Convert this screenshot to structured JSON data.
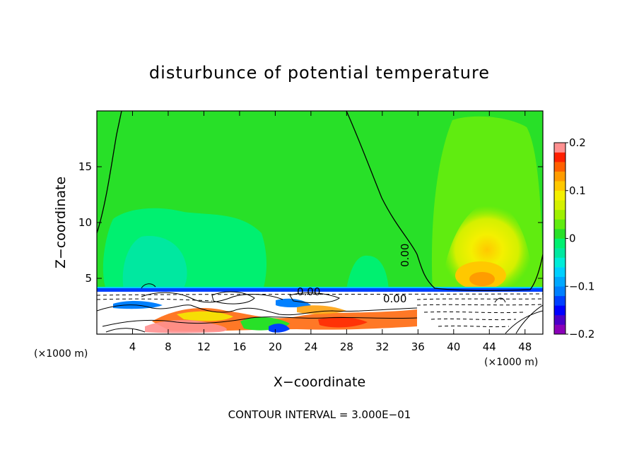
{
  "chart_data": {
    "type": "heatmap",
    "title": "disturbunce of potential temperature",
    "xlabel": "X−coordinate",
    "ylabel": "Z−coordinate",
    "x_unit_left": "(×1000 m)",
    "x_unit_right": "(×1000 m)",
    "xlim": [
      0,
      50
    ],
    "ylim": [
      0,
      20
    ],
    "x_ticks": [
      {
        "value": 4,
        "label": "4"
      },
      {
        "value": 8,
        "label": "8"
      },
      {
        "value": 12,
        "label": "12"
      },
      {
        "value": 16,
        "label": "16"
      },
      {
        "value": 20,
        "label": "20"
      },
      {
        "value": 24,
        "label": "24"
      },
      {
        "value": 28,
        "label": "28"
      },
      {
        "value": 32,
        "label": "32"
      },
      {
        "value": 36,
        "label": "36"
      },
      {
        "value": 40,
        "label": "40"
      },
      {
        "value": 44,
        "label": "44"
      },
      {
        "value": 48,
        "label": "48"
      }
    ],
    "y_ticks": [
      {
        "value": 5,
        "label": "5"
      },
      {
        "value": 10,
        "label": "10"
      },
      {
        "value": 15,
        "label": "15"
      }
    ],
    "colorbar": {
      "min": -0.2,
      "max": 0.2,
      "levels": [
        {
          "lo": -0.2,
          "hi": -0.18,
          "color": "#8a00b8"
        },
        {
          "lo": -0.18,
          "hi": -0.16,
          "color": "#4b00c8"
        },
        {
          "lo": -0.16,
          "hi": -0.14,
          "color": "#0000ff"
        },
        {
          "lo": -0.14,
          "hi": -0.12,
          "color": "#0040ff"
        },
        {
          "lo": -0.12,
          "hi": -0.1,
          "color": "#0080ff"
        },
        {
          "lo": -0.1,
          "hi": -0.08,
          "color": "#00a8ff"
        },
        {
          "lo": -0.08,
          "hi": -0.06,
          "color": "#00d0ff"
        },
        {
          "lo": -0.06,
          "hi": -0.04,
          "color": "#00ecd8"
        },
        {
          "lo": -0.04,
          "hi": -0.02,
          "color": "#00e8a0"
        },
        {
          "lo": -0.02,
          "hi": 0.0,
          "color": "#00f070"
        },
        {
          "lo": 0.0,
          "hi": 0.02,
          "color": "#28e028"
        },
        {
          "lo": 0.02,
          "hi": 0.04,
          "color": "#60ec10"
        },
        {
          "lo": 0.04,
          "hi": 0.06,
          "color": "#9ef000"
        },
        {
          "lo": 0.06,
          "hi": 0.08,
          "color": "#d4f000"
        },
        {
          "lo": 0.08,
          "hi": 0.1,
          "color": "#f4f000"
        },
        {
          "lo": 0.1,
          "hi": 0.12,
          "color": "#ffc800"
        },
        {
          "lo": 0.12,
          "hi": 0.14,
          "color": "#ff9c00"
        },
        {
          "lo": 0.14,
          "hi": 0.16,
          "color": "#ff6000"
        },
        {
          "lo": 0.16,
          "hi": 0.18,
          "color": "#ff2000"
        },
        {
          "lo": 0.18,
          "hi": 0.2,
          "color": "#ff9090"
        }
      ],
      "tick_labels": [
        {
          "value": 0.2,
          "label": "0.2"
        },
        {
          "value": 0.1,
          "label": "0.1"
        },
        {
          "value": 0.0,
          "label": "0"
        },
        {
          "value": -0.1,
          "label": "−0.1"
        },
        {
          "value": -0.2,
          "label": "−0.2"
        }
      ]
    },
    "contour_labels": [
      "0.00",
      "0.00",
      "0.00"
    ],
    "contour_interval_text": "CONTOUR INTERVAL = 3.000E−01"
  }
}
